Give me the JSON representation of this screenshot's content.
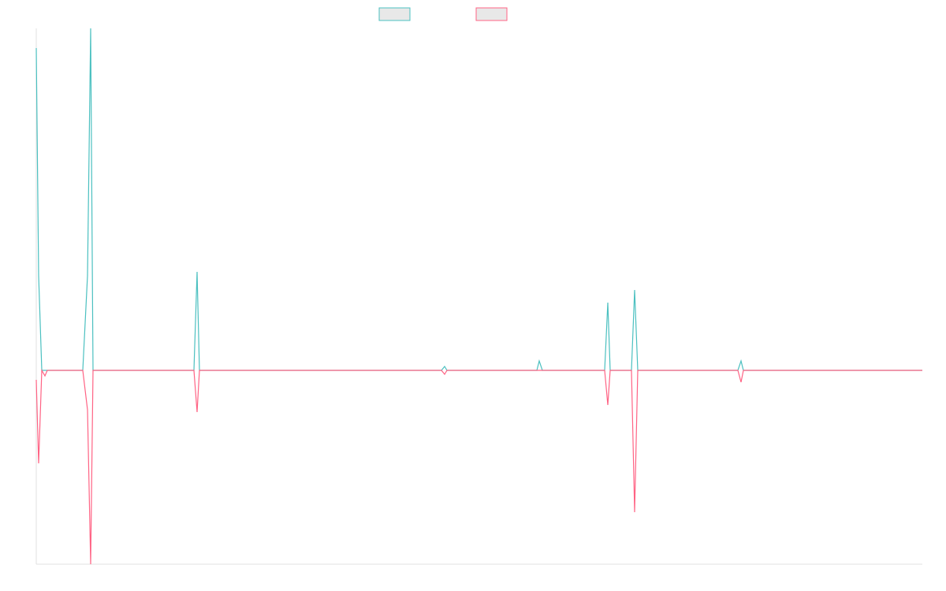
{
  "chart_data": {
    "type": "line",
    "x": [
      0,
      3,
      7,
      11,
      14,
      59,
      65,
      69,
      72,
      200,
      204,
      207,
      514,
      518,
      521,
      635,
      638,
      642,
      721,
      725,
      728,
      755,
      759,
      763,
      890,
      894,
      897,
      1124
    ],
    "series": [
      {
        "color": "#4bc0c0",
        "values": [
          409,
          120,
          0,
          0,
          0,
          0,
          120,
          434,
          0,
          0,
          125,
          0,
          0,
          5,
          0,
          0,
          12,
          0,
          0,
          86,
          0,
          0,
          102,
          0,
          0,
          12,
          0,
          0
        ]
      },
      {
        "color": "#ff6384",
        "values": [
          -12,
          -118,
          0,
          -7,
          0,
          0,
          -50,
          -246,
          0,
          0,
          -53,
          0,
          0,
          -5,
          0,
          0,
          0,
          0,
          0,
          -44,
          0,
          0,
          -180,
          0,
          0,
          -15,
          0,
          0
        ]
      }
    ],
    "xlim": [
      0,
      1124
    ],
    "ylim": [
      -246,
      434
    ]
  }
}
